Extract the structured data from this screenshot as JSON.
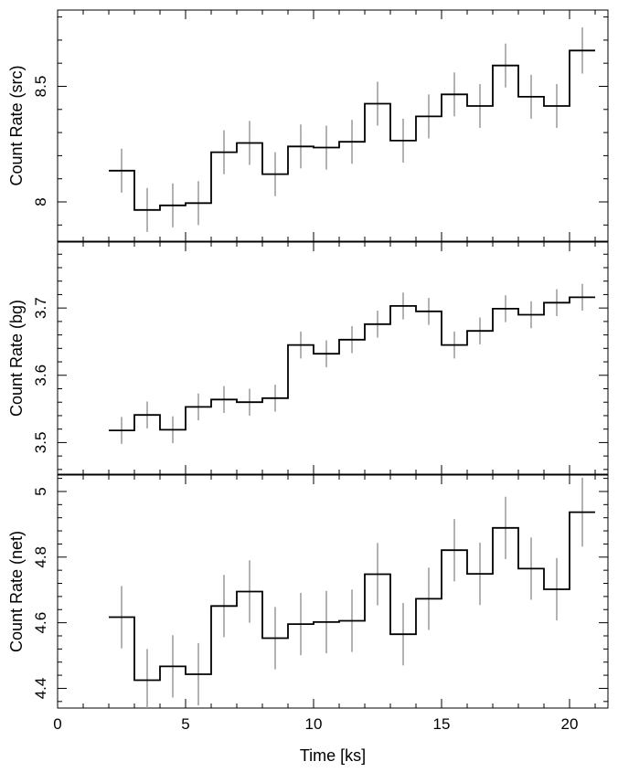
{
  "chart_data": {
    "type": "step",
    "x_axis": {
      "label": "Time [ks]",
      "range": [
        0,
        21.5
      ],
      "ticks": [
        0,
        5,
        10,
        15,
        20
      ],
      "tick_labels": [
        "0",
        "5",
        "10",
        "15",
        "20"
      ]
    },
    "bin_edges": [
      2,
      3,
      4,
      5,
      6,
      7,
      8,
      9,
      10,
      11,
      12,
      13,
      14,
      15,
      16,
      17,
      18,
      19,
      20,
      21
    ],
    "bin_centers": [
      2.5,
      3.5,
      4.5,
      5.5,
      6.5,
      7.5,
      8.5,
      9.5,
      10.5,
      11.5,
      12.5,
      13.5,
      14.5,
      15.5,
      16.5,
      17.5,
      18.5,
      19.5,
      20.5
    ],
    "panels": [
      {
        "ylabel": "Count Rate (src)",
        "ylim": [
          7.83,
          8.83
        ],
        "ticks": [
          8,
          8.5
        ],
        "tick_labels": [
          "8",
          "8.5"
        ],
        "values": [
          8.135,
          7.965,
          7.985,
          7.995,
          8.215,
          8.255,
          8.12,
          8.24,
          8.235,
          8.26,
          8.425,
          8.265,
          8.37,
          8.465,
          8.415,
          8.59,
          8.455,
          8.415,
          8.655
        ],
        "errors": [
          0.095,
          0.095,
          0.095,
          0.095,
          0.095,
          0.095,
          0.095,
          0.095,
          0.095,
          0.095,
          0.095,
          0.095,
          0.095,
          0.095,
          0.095,
          0.095,
          0.095,
          0.095,
          0.1
        ]
      },
      {
        "ylabel": "Count Rate (bg)",
        "ylim": [
          3.453,
          3.798
        ],
        "ticks": [
          3.5,
          3.6,
          3.7
        ],
        "tick_labels": [
          "3.5",
          "3.6",
          "3.7"
        ],
        "values": [
          3.518,
          3.541,
          3.519,
          3.553,
          3.564,
          3.56,
          3.566,
          3.645,
          3.632,
          3.653,
          3.676,
          3.703,
          3.695,
          3.645,
          3.666,
          3.699,
          3.69,
          3.708,
          3.716
        ],
        "errors": [
          0.02,
          0.02,
          0.02,
          0.02,
          0.02,
          0.02,
          0.02,
          0.02,
          0.02,
          0.02,
          0.02,
          0.02,
          0.02,
          0.02,
          0.02,
          0.02,
          0.02,
          0.02,
          0.02
        ]
      },
      {
        "ylabel": "Count Rate (net)",
        "ylim": [
          4.34,
          5.05
        ],
        "ticks": [
          4.4,
          4.6,
          4.8,
          5
        ],
        "tick_labels": [
          "4.4",
          "4.6",
          "4.8",
          "5"
        ],
        "values": [
          4.617,
          4.425,
          4.467,
          4.443,
          4.651,
          4.695,
          4.553,
          4.596,
          4.602,
          4.606,
          4.748,
          4.565,
          4.673,
          4.821,
          4.749,
          4.889,
          4.765,
          4.702,
          4.937
        ],
        "errors": [
          0.095,
          0.095,
          0.095,
          0.095,
          0.095,
          0.095,
          0.095,
          0.095,
          0.095,
          0.095,
          0.095,
          0.095,
          0.095,
          0.095,
          0.095,
          0.095,
          0.095,
          0.095,
          0.105
        ]
      }
    ],
    "colors": {
      "histogram": "#000000",
      "error_bars": "#999999",
      "frame": "#000000"
    },
    "grid": false,
    "legend": "none"
  }
}
